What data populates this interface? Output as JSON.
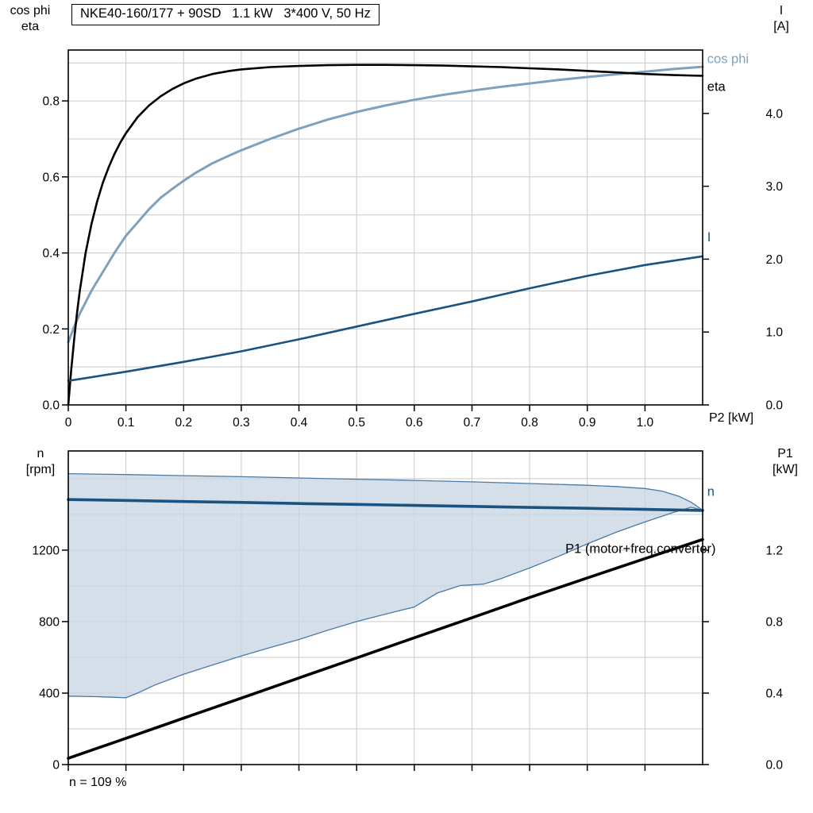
{
  "title": "NKE40-160/177 + 90SD   1.1 kW   3*400 V, 50 Hz",
  "axis_labels": {
    "top_left": "cos phi\neta",
    "top_right": "I\n[A]",
    "bottom_left": "n\n[rpm]",
    "bottom_right": "P1\n[kW]",
    "x_label": "P2 [kW]",
    "footnote": "n = 109 %"
  },
  "colors": {
    "grid": "#c9c9c9",
    "axis": "#000000",
    "eta": "#000000",
    "cos_phi": "#7ea2bd",
    "current": "#1a5380",
    "speed": "#1a5380",
    "p1": "#000000",
    "band_fill": "#c8d6e4",
    "band_edge": "#4a7aa5"
  },
  "chart_data": [
    {
      "type": "line",
      "title": "NKE40-160/177 + 90SD   1.1 kW   3*400 V, 50 Hz",
      "grid": true,
      "legend_position": "right-edge-labels",
      "x_axis": {
        "min": 0,
        "max": 1.1,
        "grid_step": 0.1,
        "label": "P2 [kW]",
        "ticks": [
          [
            0,
            "0"
          ],
          [
            0.1,
            "0.1"
          ],
          [
            0.2,
            "0.2"
          ],
          [
            0.3,
            "0.3"
          ],
          [
            0.4,
            "0.4"
          ],
          [
            0.5,
            "0.5"
          ],
          [
            0.6,
            "0.6"
          ],
          [
            0.7,
            "0.7"
          ],
          [
            0.8,
            "0.8"
          ],
          [
            0.9,
            "0.9"
          ],
          [
            1.0,
            "1.0"
          ]
        ]
      },
      "y_left": {
        "min": 0,
        "max": 0.934,
        "grid_step": 0.1,
        "label": "cos phi / eta",
        "ticks": [
          [
            0,
            "0.0"
          ],
          [
            0.2,
            "0.2"
          ],
          [
            0.4,
            "0.4"
          ],
          [
            0.6,
            "0.6"
          ],
          [
            0.8,
            "0.8"
          ]
        ]
      },
      "y_right": {
        "min": 0,
        "max": 4.87,
        "label": "I [A]",
        "ticks": [
          [
            0,
            "0.0"
          ],
          [
            1,
            "1.0"
          ],
          [
            2,
            "2.0"
          ],
          [
            3,
            "3.0"
          ],
          [
            4,
            "4.0"
          ]
        ]
      },
      "series": [
        {
          "name": "cos phi",
          "axis": "left",
          "color": "#7ea2bd",
          "width": 3,
          "points": [
            [
              0,
              0.165
            ],
            [
              0.01,
              0.205
            ],
            [
              0.02,
              0.24
            ],
            [
              0.03,
              0.27
            ],
            [
              0.04,
              0.3
            ],
            [
              0.05,
              0.325
            ],
            [
              0.06,
              0.35
            ],
            [
              0.08,
              0.4
            ],
            [
              0.1,
              0.445
            ],
            [
              0.12,
              0.48
            ],
            [
              0.14,
              0.515
            ],
            [
              0.16,
              0.545
            ],
            [
              0.18,
              0.568
            ],
            [
              0.2,
              0.59
            ],
            [
              0.22,
              0.61
            ],
            [
              0.25,
              0.636
            ],
            [
              0.28,
              0.657
            ],
            [
              0.3,
              0.67
            ],
            [
              0.35,
              0.7
            ],
            [
              0.4,
              0.727
            ],
            [
              0.45,
              0.751
            ],
            [
              0.5,
              0.771
            ],
            [
              0.55,
              0.788
            ],
            [
              0.6,
              0.803
            ],
            [
              0.65,
              0.816
            ],
            [
              0.7,
              0.827
            ],
            [
              0.75,
              0.837
            ],
            [
              0.8,
              0.846
            ],
            [
              0.85,
              0.855
            ],
            [
              0.9,
              0.863
            ],
            [
              0.95,
              0.87
            ],
            [
              1.0,
              0.877
            ],
            [
              1.05,
              0.884
            ],
            [
              1.1,
              0.89
            ]
          ]
        },
        {
          "name": "eta",
          "axis": "left",
          "color": "#000000",
          "width": 2.6,
          "points": [
            [
              0,
              0
            ],
            [
              0.005,
              0.09
            ],
            [
              0.01,
              0.17
            ],
            [
              0.015,
              0.24
            ],
            [
              0.02,
              0.3
            ],
            [
              0.03,
              0.4
            ],
            [
              0.04,
              0.475
            ],
            [
              0.05,
              0.535
            ],
            [
              0.06,
              0.585
            ],
            [
              0.07,
              0.625
            ],
            [
              0.08,
              0.66
            ],
            [
              0.09,
              0.69
            ],
            [
              0.1,
              0.715
            ],
            [
              0.12,
              0.757
            ],
            [
              0.14,
              0.788
            ],
            [
              0.16,
              0.812
            ],
            [
              0.18,
              0.831
            ],
            [
              0.2,
              0.846
            ],
            [
              0.22,
              0.858
            ],
            [
              0.25,
              0.871
            ],
            [
              0.28,
              0.879
            ],
            [
              0.3,
              0.883
            ],
            [
              0.35,
              0.889
            ],
            [
              0.4,
              0.892
            ],
            [
              0.45,
              0.894
            ],
            [
              0.5,
              0.895
            ],
            [
              0.55,
              0.895
            ],
            [
              0.6,
              0.894
            ],
            [
              0.65,
              0.893
            ],
            [
              0.7,
              0.891
            ],
            [
              0.75,
              0.889
            ],
            [
              0.8,
              0.886
            ],
            [
              0.85,
              0.883
            ],
            [
              0.9,
              0.879
            ],
            [
              0.95,
              0.875
            ],
            [
              1.0,
              0.871
            ],
            [
              1.05,
              0.868
            ],
            [
              1.1,
              0.866
            ]
          ]
        },
        {
          "name": "I",
          "axis": "right",
          "color": "#1a5380",
          "width": 2.6,
          "points": [
            [
              0,
              0.33
            ],
            [
              0.1,
              0.455
            ],
            [
              0.2,
              0.59
            ],
            [
              0.3,
              0.735
            ],
            [
              0.4,
              0.9
            ],
            [
              0.5,
              1.075
            ],
            [
              0.6,
              1.25
            ],
            [
              0.7,
              1.42
            ],
            [
              0.8,
              1.6
            ],
            [
              0.9,
              1.77
            ],
            [
              1.0,
              1.92
            ],
            [
              1.1,
              2.04
            ]
          ]
        }
      ],
      "curve_labels": [
        {
          "text": "cos phi",
          "x": 1.108,
          "y": 0.9,
          "axis": "left",
          "color": "#7ea2bd"
        },
        {
          "text": "eta",
          "x": 1.108,
          "y": 0.826,
          "axis": "left",
          "color": "#000000"
        },
        {
          "text": "I",
          "x": 1.108,
          "y": 0.43,
          "axis": "left",
          "color": "#1a5380"
        }
      ]
    },
    {
      "type": "line",
      "title": "",
      "grid": true,
      "x_axis": {
        "min": 0,
        "max": 1.1,
        "grid_step": 0.1,
        "label": "",
        "ticks": [
          [
            0,
            ""
          ],
          [
            0.1,
            ""
          ],
          [
            0.2,
            ""
          ],
          [
            0.3,
            ""
          ],
          [
            0.4,
            ""
          ],
          [
            0.5,
            ""
          ],
          [
            0.6,
            ""
          ],
          [
            0.7,
            ""
          ],
          [
            0.8,
            ""
          ],
          [
            0.9,
            ""
          ],
          [
            1.0,
            ""
          ]
        ]
      },
      "y_left": {
        "min": 0,
        "max": 1755,
        "grid_step": 200,
        "label": "n [rpm]",
        "ticks": [
          [
            0,
            "0"
          ],
          [
            400,
            "400"
          ],
          [
            800,
            "800"
          ],
          [
            1200,
            "1200"
          ]
        ]
      },
      "y_right": {
        "min": 0,
        "max": 1.7556,
        "label": "P1 [kW]",
        "ticks": [
          [
            0,
            "0.0"
          ],
          [
            0.4,
            "0.4"
          ],
          [
            0.8,
            "0.8"
          ],
          [
            1.2,
            "1.2"
          ]
        ]
      },
      "band": {
        "name": "speed-control-range",
        "axis": "left",
        "fill": "#c8d6e4",
        "fill_opacity": 0.78,
        "edge": "#4a7aa5",
        "edge_width": 1.3,
        "upper": [
          [
            0,
            1628
          ],
          [
            0.1,
            1623
          ],
          [
            0.2,
            1617
          ],
          [
            0.3,
            1611
          ],
          [
            0.4,
            1604
          ],
          [
            0.5,
            1597
          ],
          [
            0.6,
            1590
          ],
          [
            0.7,
            1582
          ],
          [
            0.8,
            1573
          ],
          [
            0.9,
            1563
          ],
          [
            0.95,
            1556
          ],
          [
            1.0,
            1545
          ],
          [
            1.03,
            1530
          ],
          [
            1.06,
            1500
          ],
          [
            1.08,
            1468
          ],
          [
            1.1,
            1424
          ]
        ],
        "lower": [
          [
            0,
            383
          ],
          [
            0.05,
            380
          ],
          [
            0.1,
            374
          ],
          [
            0.12,
            400
          ],
          [
            0.15,
            445
          ],
          [
            0.2,
            505
          ],
          [
            0.25,
            557
          ],
          [
            0.3,
            608
          ],
          [
            0.35,
            655
          ],
          [
            0.4,
            700
          ],
          [
            0.45,
            752
          ],
          [
            0.5,
            800
          ],
          [
            0.55,
            842
          ],
          [
            0.6,
            882
          ],
          [
            0.64,
            960
          ],
          [
            0.68,
            1002
          ],
          [
            0.72,
            1010
          ],
          [
            0.75,
            1040
          ],
          [
            0.8,
            1100
          ],
          [
            0.85,
            1165
          ],
          [
            0.9,
            1235
          ],
          [
            0.95,
            1300
          ],
          [
            1.0,
            1358
          ],
          [
            1.05,
            1412
          ],
          [
            1.08,
            1440
          ],
          [
            1.1,
            1424
          ]
        ]
      },
      "series": [
        {
          "name": "n",
          "axis": "left",
          "color": "#1a5380",
          "width": 3.6,
          "points": [
            [
              0,
              1483
            ],
            [
              0.1,
              1478
            ],
            [
              0.2,
              1472
            ],
            [
              0.3,
              1467
            ],
            [
              0.4,
              1461
            ],
            [
              0.5,
              1456
            ],
            [
              0.6,
              1450
            ],
            [
              0.7,
              1445
            ],
            [
              0.8,
              1439
            ],
            [
              0.9,
              1434
            ],
            [
              1.0,
              1428
            ],
            [
              1.1,
              1422
            ]
          ]
        },
        {
          "name": "P1 (motor+freq.converter)",
          "axis": "right",
          "color": "#000000",
          "width": 3.6,
          "points": [
            [
              0,
              0.035
            ],
            [
              0.1,
              0.147
            ],
            [
              0.2,
              0.26
            ],
            [
              0.3,
              0.372
            ],
            [
              0.4,
              0.485
            ],
            [
              0.5,
              0.597
            ],
            [
              0.6,
              0.71
            ],
            [
              0.7,
              0.822
            ],
            [
              0.8,
              0.935
            ],
            [
              0.9,
              1.045
            ],
            [
              1.0,
              1.153
            ],
            [
              1.1,
              1.26
            ]
          ]
        }
      ],
      "curve_labels": [
        {
          "text": "n",
          "x": 1.108,
          "y": 1505,
          "axis": "left",
          "color": "#1a5380"
        },
        {
          "text": "P1 (motor+freq.converter)",
          "x": 0.862,
          "y": 1185,
          "axis": "left",
          "color": "#000000"
        }
      ],
      "annotation": "n = 109 %"
    }
  ]
}
